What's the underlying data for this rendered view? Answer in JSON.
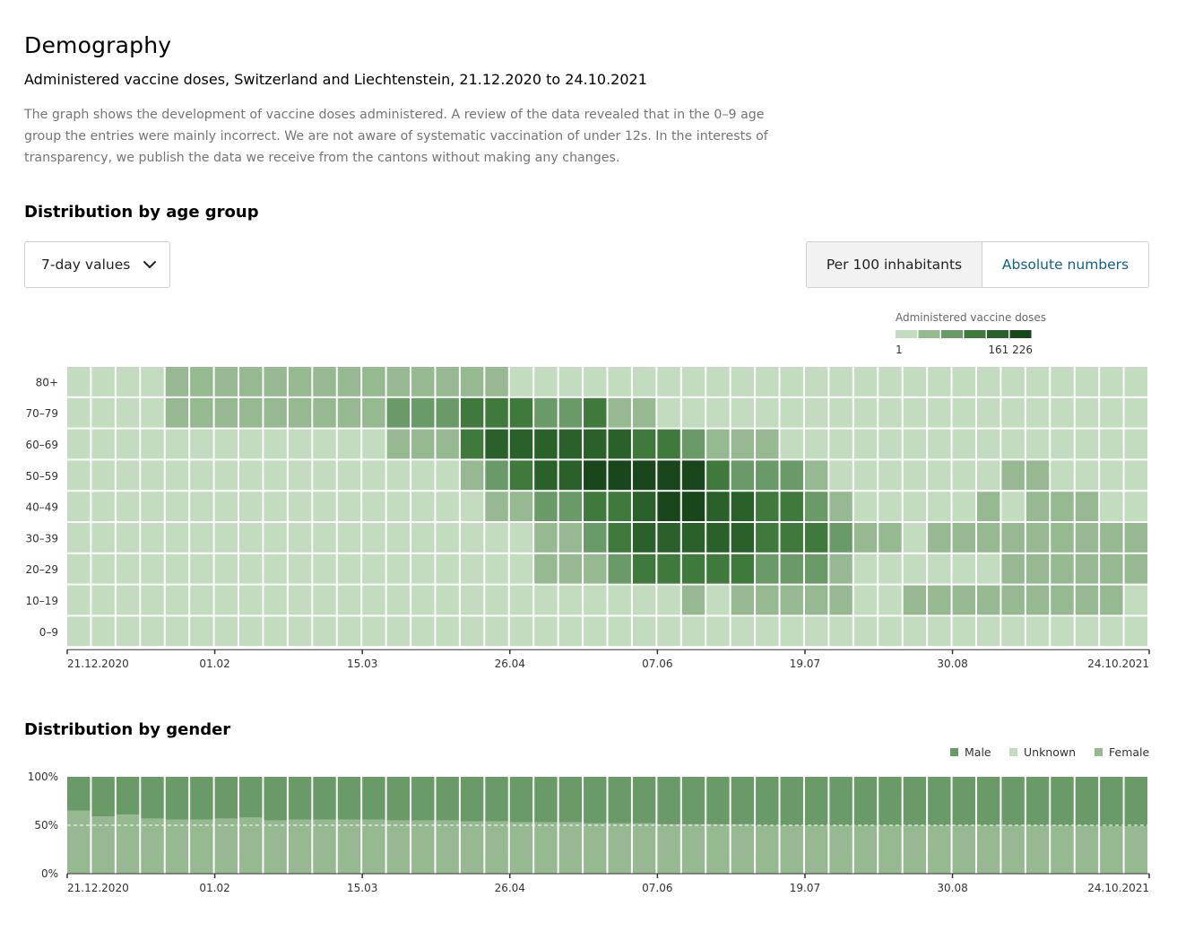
{
  "header": {
    "title": "Demography",
    "subtitle": "Administered vaccine doses, Switzerland and Liechtenstein, 21.12.2020 to 24.10.2021",
    "description": "The graph shows the development of vaccine doses administered. A review of the data revealed that in the 0–9 age group the entries were mainly incorrect. We are not aware of systematic vaccination of under 12s. In the interests of transparency, we publish the data we receive from the cantons without making any changes."
  },
  "age_section": {
    "title": "Distribution by age group",
    "dropdown": {
      "selected": "7-day values",
      "icon": "chevron-down-icon"
    },
    "toggle": {
      "active_label": "Per 100 inhabitants",
      "inactive_label": "Absolute numbers"
    }
  },
  "gender_section": {
    "title": "Distribution by gender"
  },
  "colors": {
    "scale": [
      "#c3dcc0",
      "#96b992",
      "#6a9a67",
      "#3f7a3c",
      "#2a612a",
      "#19461b"
    ],
    "male": "#6a9a67",
    "unknown": "#c3dcc0",
    "female": "#96b992"
  },
  "chart_data": [
    {
      "type": "heatmap",
      "title": "Distribution by age group",
      "legend": {
        "title": "Administered vaccine doses",
        "min_label": "1",
        "max_label": "161 226",
        "levels": 6,
        "placement": "top-right"
      },
      "y_categories": [
        "80+",
        "70–79",
        "60–69",
        "50–59",
        "40–49",
        "30–39",
        "20–29",
        "10–19",
        "0–9"
      ],
      "x_tick_labels": [
        "21.12.2020",
        "01.02",
        "15.03",
        "26.04",
        "07.06",
        "19.07",
        "30.08",
        "24.10.2021"
      ],
      "weeks": 44,
      "levels": [
        [
          0,
          0,
          0,
          0,
          1,
          1,
          1,
          1,
          1,
          1,
          1,
          1,
          1,
          1,
          1,
          1,
          1,
          1,
          0,
          0,
          0,
          0,
          0,
          0,
          0,
          0,
          0,
          0,
          0,
          0,
          0,
          0,
          0,
          0,
          0,
          0,
          0,
          0,
          0,
          0,
          0,
          0,
          0,
          0
        ],
        [
          0,
          0,
          0,
          0,
          1,
          1,
          1,
          1,
          1,
          1,
          1,
          1,
          1,
          2,
          2,
          2,
          3,
          3,
          3,
          2,
          2,
          3,
          1,
          1,
          0,
          0,
          0,
          0,
          0,
          0,
          0,
          0,
          0,
          0,
          0,
          0,
          0,
          0,
          0,
          0,
          0,
          0,
          0,
          0
        ],
        [
          0,
          0,
          0,
          0,
          0,
          0,
          0,
          0,
          0,
          0,
          0,
          0,
          0,
          1,
          1,
          1,
          3,
          4,
          4,
          4,
          4,
          4,
          4,
          3,
          3,
          2,
          1,
          1,
          1,
          0,
          0,
          0,
          0,
          0,
          0,
          0,
          0,
          0,
          0,
          0,
          0,
          0,
          0,
          0
        ],
        [
          0,
          0,
          0,
          0,
          0,
          0,
          0,
          0,
          0,
          0,
          0,
          0,
          0,
          0,
          0,
          0,
          1,
          2,
          3,
          4,
          4,
          5,
          5,
          5,
          5,
          5,
          3,
          2,
          2,
          2,
          1,
          0,
          0,
          0,
          0,
          0,
          0,
          0,
          1,
          1,
          0,
          0,
          0,
          0
        ],
        [
          0,
          0,
          0,
          0,
          0,
          0,
          0,
          0,
          0,
          0,
          0,
          0,
          0,
          0,
          0,
          0,
          0,
          1,
          1,
          2,
          2,
          3,
          3,
          4,
          5,
          5,
          4,
          4,
          3,
          3,
          2,
          1,
          0,
          0,
          0,
          0,
          0,
          1,
          0,
          1,
          1,
          1,
          0,
          0
        ],
        [
          0,
          0,
          0,
          0,
          0,
          0,
          0,
          0,
          0,
          0,
          0,
          0,
          0,
          0,
          0,
          0,
          0,
          0,
          0,
          1,
          1,
          2,
          3,
          4,
          4,
          4,
          4,
          4,
          3,
          3,
          3,
          2,
          1,
          1,
          0,
          1,
          1,
          1,
          1,
          1,
          1,
          1,
          1,
          1
        ],
        [
          0,
          0,
          0,
          0,
          0,
          0,
          0,
          0,
          0,
          0,
          0,
          0,
          0,
          0,
          0,
          0,
          0,
          0,
          0,
          1,
          1,
          1,
          2,
          3,
          3,
          3,
          3,
          3,
          2,
          2,
          2,
          1,
          0,
          0,
          0,
          0,
          0,
          0,
          1,
          1,
          1,
          1,
          1,
          1
        ],
        [
          0,
          0,
          0,
          0,
          0,
          0,
          0,
          0,
          0,
          0,
          0,
          0,
          0,
          0,
          0,
          0,
          0,
          0,
          0,
          0,
          0,
          0,
          0,
          0,
          0,
          1,
          0,
          1,
          1,
          1,
          1,
          1,
          0,
          0,
          1,
          1,
          1,
          1,
          1,
          1,
          1,
          1,
          1,
          0
        ],
        [
          0,
          0,
          0,
          0,
          0,
          0,
          0,
          0,
          0,
          0,
          0,
          0,
          0,
          0,
          0,
          0,
          0,
          0,
          0,
          0,
          0,
          0,
          0,
          0,
          0,
          0,
          0,
          0,
          0,
          0,
          0,
          0,
          0,
          0,
          0,
          0,
          0,
          0,
          0,
          0,
          0,
          0,
          0,
          0
        ]
      ]
    },
    {
      "type": "bar",
      "stacked": true,
      "title": "Distribution by gender",
      "y_tick_labels": [
        "100%",
        "50%",
        "0%"
      ],
      "ylim": [
        0,
        100
      ],
      "legend_placement": "top-right",
      "x_tick_labels": [
        "21.12.2020",
        "01.02",
        "15.03",
        "26.04",
        "07.06",
        "19.07",
        "30.08",
        "24.10.2021"
      ],
      "series": [
        {
          "name": "Male"
        },
        {
          "name": "Unknown"
        },
        {
          "name": "Female"
        }
      ],
      "female_percent": [
        65,
        59,
        61,
        57,
        56,
        56,
        57,
        58,
        55,
        56,
        56,
        56,
        56,
        55,
        55,
        55,
        54,
        54,
        53,
        53,
        53,
        52,
        52,
        52,
        51,
        51,
        51,
        51,
        50,
        50,
        50,
        50,
        50,
        50,
        50,
        50,
        50,
        50,
        50,
        50,
        50,
        50,
        49,
        49
      ],
      "unknown_percent": [
        0,
        0,
        0,
        0,
        0,
        0,
        0,
        0,
        0,
        0,
        0,
        0,
        0,
        0,
        0,
        0,
        0,
        0,
        0,
        0,
        0,
        0,
        0,
        0,
        0,
        0,
        0,
        0,
        0,
        0,
        0,
        0,
        0,
        0,
        0,
        0,
        0,
        0,
        0,
        0,
        0,
        0,
        0,
        0
      ]
    }
  ]
}
